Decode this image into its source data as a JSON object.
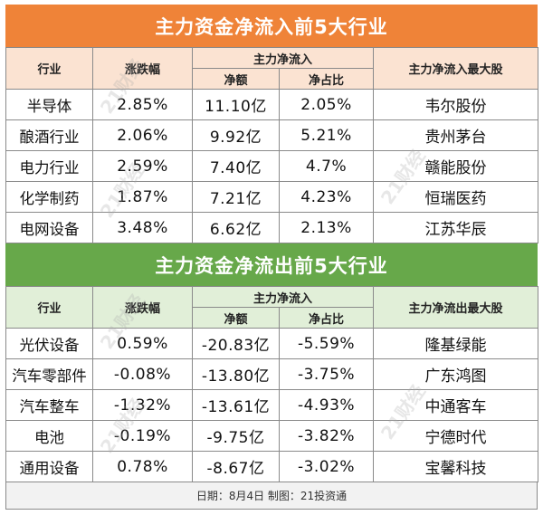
{
  "inflow": {
    "title": "主力资金净流入前5大行业",
    "headers": {
      "industry": "行业",
      "change": "涨跌幅",
      "net_group": "主力净流入",
      "net_amount": "净额",
      "net_ratio": "净占比",
      "top_stock": "主力净流入最大股"
    },
    "rows": [
      {
        "industry": "半导体",
        "change": "2.85%",
        "amount": "11.10亿",
        "ratio": "2.05%",
        "stock": "韦尔股份"
      },
      {
        "industry": "酿酒行业",
        "change": "2.06%",
        "amount": "9.92亿",
        "ratio": "5.21%",
        "stock": "贵州茅台"
      },
      {
        "industry": "电力行业",
        "change": "2.59%",
        "amount": "7.40亿",
        "ratio": "4.7%",
        "stock": "赣能股份"
      },
      {
        "industry": "化学制药",
        "change": "1.87%",
        "amount": "7.21亿",
        "ratio": "4.23%",
        "stock": "恒瑞医药"
      },
      {
        "industry": "电网设备",
        "change": "3.48%",
        "amount": "6.62亿",
        "ratio": "2.13%",
        "stock": "江苏华辰"
      }
    ]
  },
  "outflow": {
    "title": "主力资金净流出前5大行业",
    "headers": {
      "industry": "行业",
      "change": "涨跌幅",
      "net_group": "主力净流入",
      "net_amount": "净额",
      "net_ratio": "净占比",
      "top_stock": "主力净流出最大股"
    },
    "rows": [
      {
        "industry": "光伏设备",
        "change": "0.59%",
        "amount": "-20.83亿",
        "ratio": "-5.59%",
        "stock": "隆基绿能"
      },
      {
        "industry": "汽车零部件",
        "change": "-0.08%",
        "amount": "-13.80亿",
        "ratio": "-3.75%",
        "stock": "广东鸿图"
      },
      {
        "industry": "汽车整车",
        "change": "-1.32%",
        "amount": "-13.61亿",
        "ratio": "-4.93%",
        "stock": "中通客车"
      },
      {
        "industry": "电池",
        "change": "-0.19%",
        "amount": "-9.75亿",
        "ratio": "-3.82%",
        "stock": "宁德时代"
      },
      {
        "industry": "通用设备",
        "change": "0.78%",
        "amount": "-8.67亿",
        "ratio": "-3.02%",
        "stock": "宝馨科技"
      }
    ]
  },
  "footer": "日期：8月4日 制图：21投资通",
  "watermark": "21财经",
  "colors": {
    "inflow_banner": "#ef8338",
    "outflow_banner": "#67a84a",
    "inflow_header": "#fbe3d2",
    "outflow_header": "#e1efd8"
  }
}
